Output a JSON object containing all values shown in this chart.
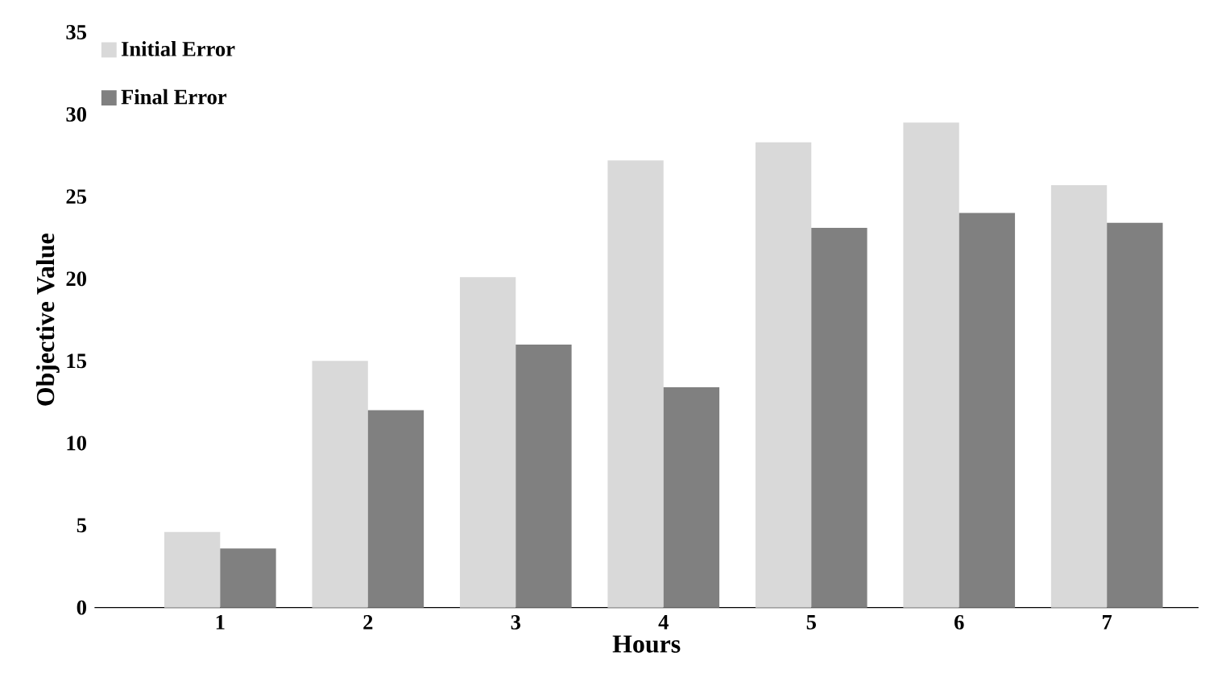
{
  "chart_data": {
    "type": "bar",
    "xlabel": "Hours",
    "ylabel": "Objective Value",
    "categories": [
      "1",
      "2",
      "3",
      "4",
      "5",
      "6",
      "7"
    ],
    "series": [
      {
        "name": "Initial Error",
        "color": "#d9d9d9",
        "values": [
          4.6,
          15.0,
          20.1,
          27.2,
          28.3,
          29.5,
          25.7
        ]
      },
      {
        "name": "Final Error",
        "color": "#808080",
        "values": [
          3.6,
          12.0,
          16.0,
          13.4,
          23.1,
          24.0,
          23.4
        ]
      }
    ],
    "ylim": [
      0,
      35
    ],
    "yticks": [
      0,
      5,
      10,
      15,
      20,
      25,
      30,
      35
    ],
    "grid": false,
    "legend": "top left"
  }
}
